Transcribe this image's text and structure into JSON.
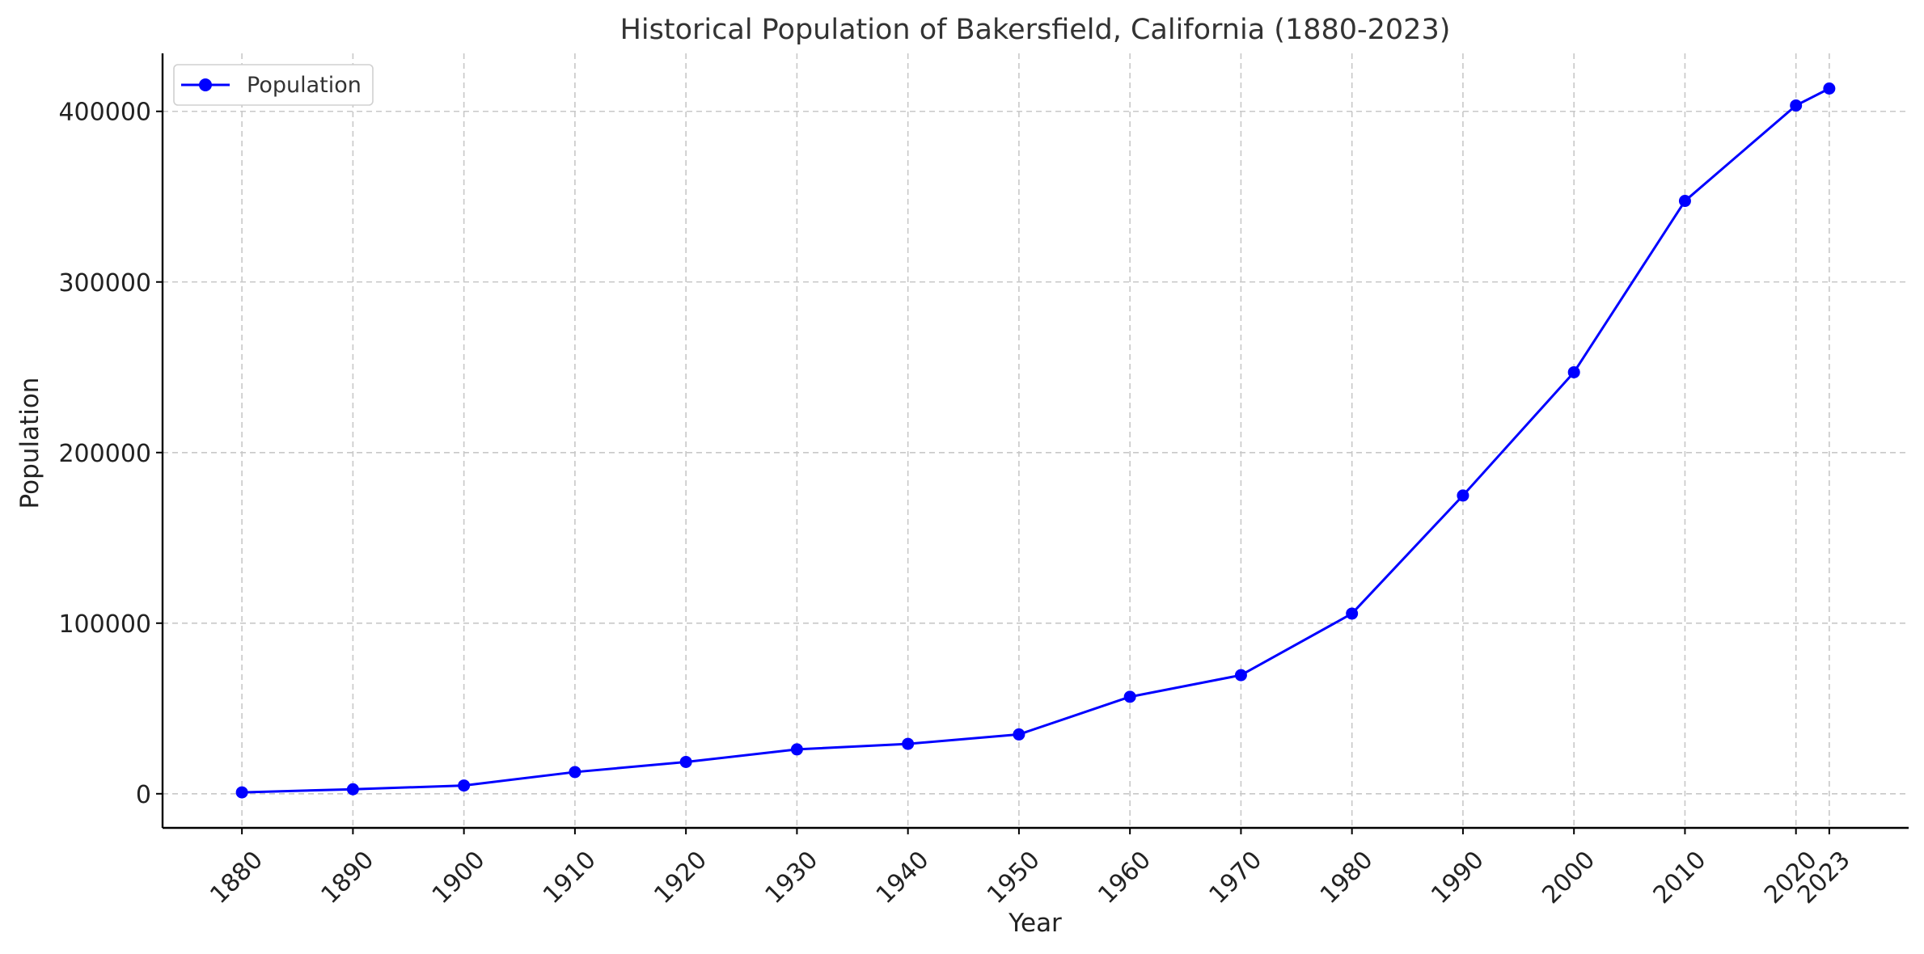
{
  "chart_data": {
    "type": "line",
    "title": "Historical Population of Bakersfield, California (1880-2023)",
    "xlabel": "Year",
    "ylabel": "Population",
    "x": [
      1880,
      1890,
      1900,
      1910,
      1920,
      1930,
      1940,
      1950,
      1960,
      1970,
      1980,
      1990,
      2000,
      2010,
      2020,
      2023
    ],
    "xticks": [
      "1880",
      "1890",
      "1900",
      "1910",
      "1920",
      "1930",
      "1940",
      "1950",
      "1960",
      "1970",
      "1980",
      "1990",
      "2000",
      "2010",
      "2020",
      "2023"
    ],
    "series": [
      {
        "name": "Population",
        "color": "#0000ff",
        "marker": "circle",
        "values": [
          801,
          2626,
          4836,
          12727,
          18638,
          26015,
          29252,
          34784,
          56848,
          69515,
          105611,
          174820,
          247057,
          347483,
          403455,
          413381
        ]
      }
    ],
    "yticks": [
      "0",
      "100000",
      "200000",
      "300000",
      "400000"
    ],
    "ytick_values": [
      0,
      100000,
      200000,
      300000,
      400000
    ],
    "xlim": [
      1872.85,
      2030.15
    ],
    "ylim": [
      -20000,
      434000
    ],
    "grid": true,
    "legend_position": "top-left"
  }
}
